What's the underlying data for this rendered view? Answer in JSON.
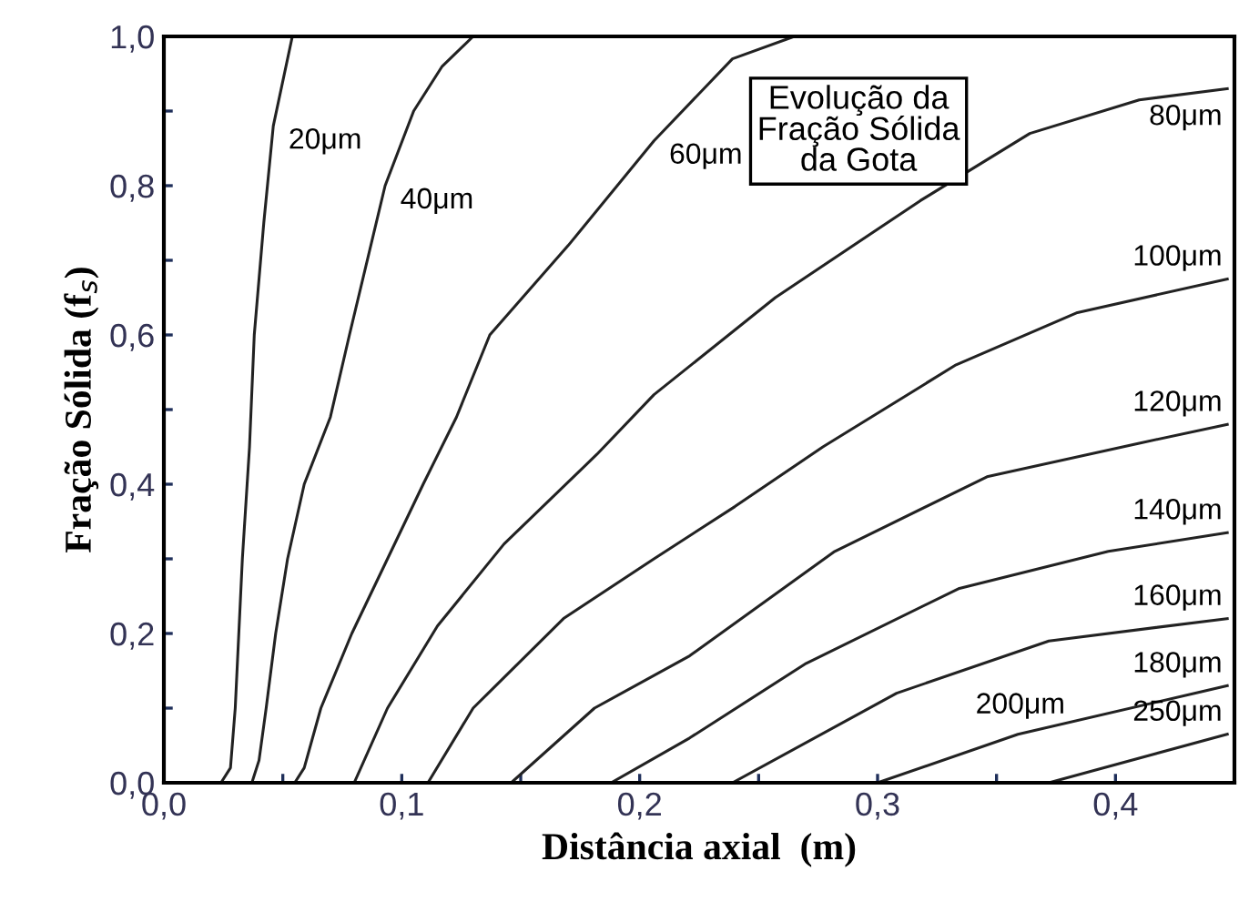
{
  "chart_data": {
    "type": "line",
    "xlabel": "Distância axial  (m)",
    "ylabel": "Fração Sólida (f$_{s}$)",
    "xlim": [
      0,
      0.45
    ],
    "ylim": [
      0,
      1
    ],
    "xticks": [
      {
        "value": 0,
        "label": "0,0"
      },
      {
        "value": 0.05,
        "label": null
      },
      {
        "value": 0.1,
        "label": "0,1"
      },
      {
        "value": 0.15,
        "label": null
      },
      {
        "value": 0.2,
        "label": "0,2"
      },
      {
        "value": 0.25,
        "label": null
      },
      {
        "value": 0.3,
        "label": "0,3"
      },
      {
        "value": 0.35,
        "label": null
      },
      {
        "value": 0.4,
        "label": "0,4"
      }
    ],
    "yticks": [
      {
        "value": 0,
        "label": "0,0"
      },
      {
        "value": 0.1,
        "label": null
      },
      {
        "value": 0.2,
        "label": "0,2"
      },
      {
        "value": 0.3,
        "label": null
      },
      {
        "value": 0.4,
        "label": "0,4"
      },
      {
        "value": 0.5,
        "label": null
      },
      {
        "value": 0.6,
        "label": "0,6"
      },
      {
        "value": 0.7,
        "label": null
      },
      {
        "value": 0.8,
        "label": "0,8"
      },
      {
        "value": 0.9,
        "label": null
      },
      {
        "value": 1.0,
        "label": "1,0"
      }
    ],
    "grid": false,
    "legend": false,
    "marker": "none",
    "line_style": "solid",
    "series": [
      {
        "name": "20μm",
        "color": "#222222",
        "x": [
          0.024,
          0.028,
          0.03,
          0.033,
          0.036,
          0.038,
          0.042,
          0.046,
          0.054
        ],
        "values": [
          0,
          0.02,
          0.1,
          0.3,
          0.45,
          0.6,
          0.75,
          0.88,
          1.0
        ]
      },
      {
        "name": "40μm",
        "color": "#222222",
        "x": [
          0.037,
          0.04,
          0.043,
          0.047,
          0.052,
          0.059,
          0.07,
          0.078,
          0.093,
          0.105,
          0.117,
          0.13
        ],
        "values": [
          0,
          0.03,
          0.1,
          0.2,
          0.3,
          0.4,
          0.49,
          0.6,
          0.8,
          0.9,
          0.96,
          1.0
        ]
      },
      {
        "name": "60μm",
        "color": "#222222",
        "x": [
          0.055,
          0.059,
          0.066,
          0.079,
          0.094,
          0.109,
          0.123,
          0.137,
          0.17,
          0.206,
          0.239,
          0.265
        ],
        "values": [
          0,
          0.02,
          0.1,
          0.2,
          0.3,
          0.4,
          0.49,
          0.6,
          0.72,
          0.86,
          0.97,
          1.0
        ]
      },
      {
        "name": "80μm",
        "color": "#222222",
        "x": [
          0.08,
          0.094,
          0.115,
          0.143,
          0.182,
          0.206,
          0.257,
          0.318,
          0.364,
          0.41,
          0.447
        ],
        "values": [
          0,
          0.1,
          0.21,
          0.32,
          0.44,
          0.52,
          0.65,
          0.78,
          0.87,
          0.915,
          0.93
        ]
      },
      {
        "name": "100μm",
        "color": "#222222",
        "x": [
          0.111,
          0.13,
          0.168,
          0.206,
          0.24,
          0.277,
          0.333,
          0.384,
          0.447
        ],
        "values": [
          0,
          0.1,
          0.22,
          0.3,
          0.37,
          0.45,
          0.56,
          0.63,
          0.675
        ]
      },
      {
        "name": "120μm",
        "color": "#222222",
        "x": [
          0.146,
          0.181,
          0.221,
          0.282,
          0.346,
          0.41,
          0.447
        ],
        "values": [
          0,
          0.1,
          0.17,
          0.31,
          0.41,
          0.455,
          0.48
        ]
      },
      {
        "name": "140μm",
        "color": "#222222",
        "x": [
          0.188,
          0.221,
          0.27,
          0.334,
          0.397,
          0.447
        ],
        "values": [
          0,
          0.06,
          0.16,
          0.26,
          0.31,
          0.335
        ]
      },
      {
        "name": "160μm",
        "color": "#222222",
        "x": [
          0.239,
          0.308,
          0.372,
          0.447
        ],
        "values": [
          0,
          0.12,
          0.19,
          0.22
        ]
      },
      {
        "name": "180μm",
        "color": "#222222",
        "x": [
          0.3,
          0.359,
          0.447
        ],
        "values": [
          0,
          0.065,
          0.13
        ]
      },
      {
        "name": "250μm",
        "color": "#222222",
        "x": [
          0.372,
          0.447
        ],
        "values": [
          0,
          0.065
        ]
      }
    ],
    "annotations": [
      "200μm",
      "Evolução da\nFração Sólida\nda Gota"
    ]
  }
}
